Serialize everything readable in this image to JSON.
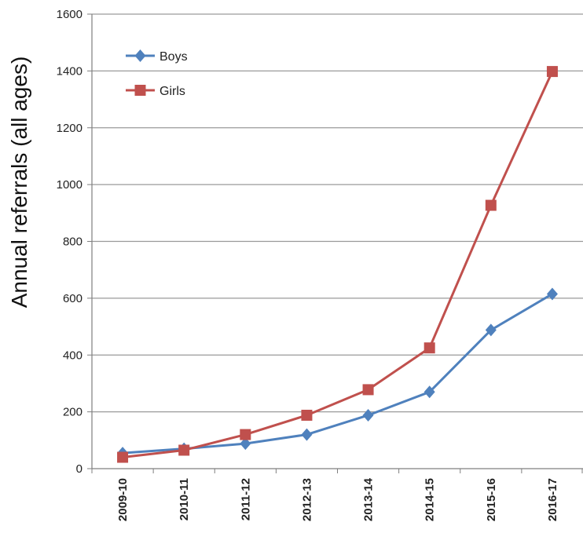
{
  "chart_data": {
    "type": "line",
    "title": "",
    "xlabel": "",
    "ylabel": "Annual referrals (all ages)",
    "categories": [
      "2009-10",
      "2010-11",
      "2011-12",
      "2012-13",
      "2013-14",
      "2014-15",
      "2015-16",
      "2016-17"
    ],
    "ylim": [
      0,
      1600
    ],
    "yticks": [
      0,
      200,
      400,
      600,
      800,
      1000,
      1200,
      1400,
      1600
    ],
    "grid": true,
    "legend_position": "top-left",
    "series": [
      {
        "name": "Boys",
        "values": [
          55,
          70,
          88,
          120,
          188,
          270,
          488,
          615
        ],
        "color": "#4f81bd",
        "marker": "diamond"
      },
      {
        "name": "Girls",
        "values": [
          40,
          65,
          120,
          188,
          278,
          425,
          927,
          1398
        ],
        "color": "#c0504d",
        "marker": "square"
      }
    ]
  }
}
